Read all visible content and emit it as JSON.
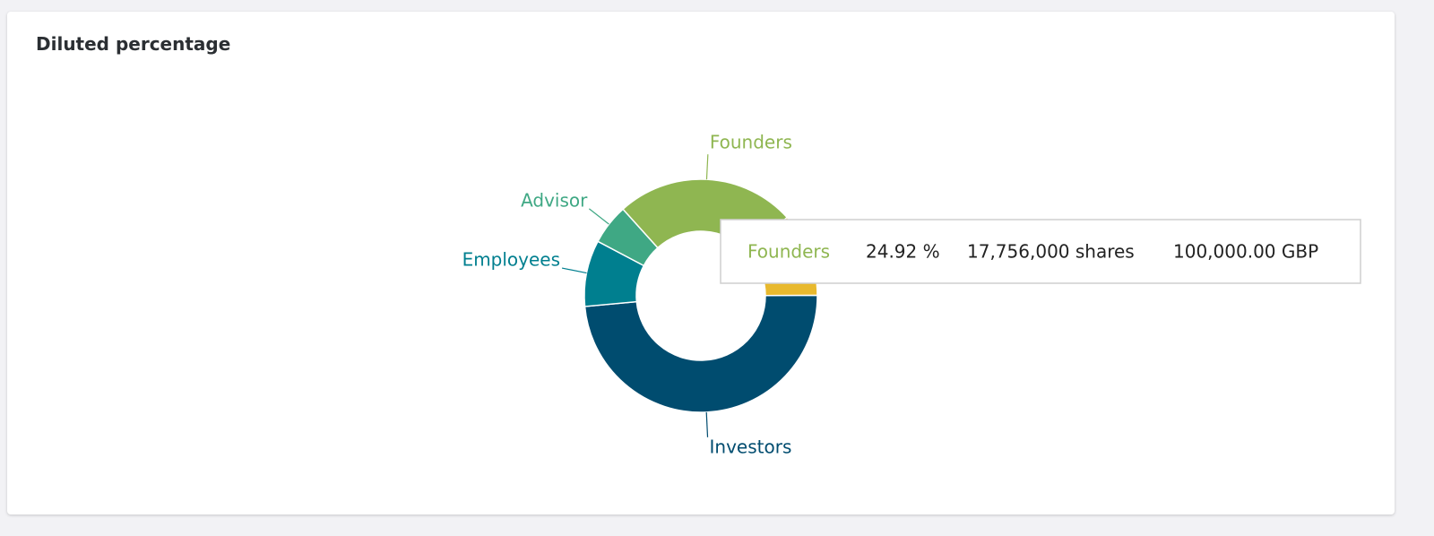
{
  "chart_data": {
    "type": "donut",
    "title": "Diluted percentage",
    "categories": [
      "Founders",
      null,
      "Investors",
      "Employees",
      "Advisor"
    ],
    "values": [
      24.92,
      11.7,
      48.6,
      9.2,
      5.6
    ],
    "colors": [
      "#8fb651",
      "#e8b92e",
      "#004c6f",
      "#007f8f",
      "#3fa884"
    ],
    "tooltip": {
      "label": "Founders",
      "percent": "24.92 %",
      "shares": "17,756,000 shares",
      "amount": "100,000.00 GBP"
    }
  }
}
